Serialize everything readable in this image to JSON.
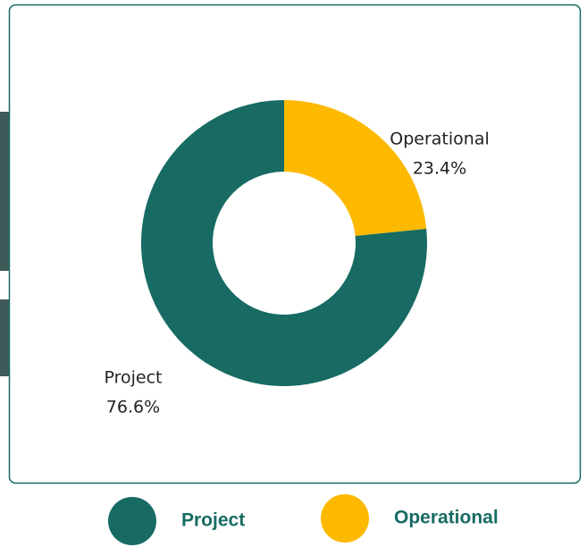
{
  "chart_data": {
    "type": "donut",
    "categories": [
      "Project",
      "Operational"
    ],
    "values": [
      76.6,
      23.4
    ],
    "value_labels": [
      "76.6%",
      "23.4%"
    ],
    "colors": [
      "#176b63",
      "#fdb900"
    ],
    "legend": "bottom"
  }
}
